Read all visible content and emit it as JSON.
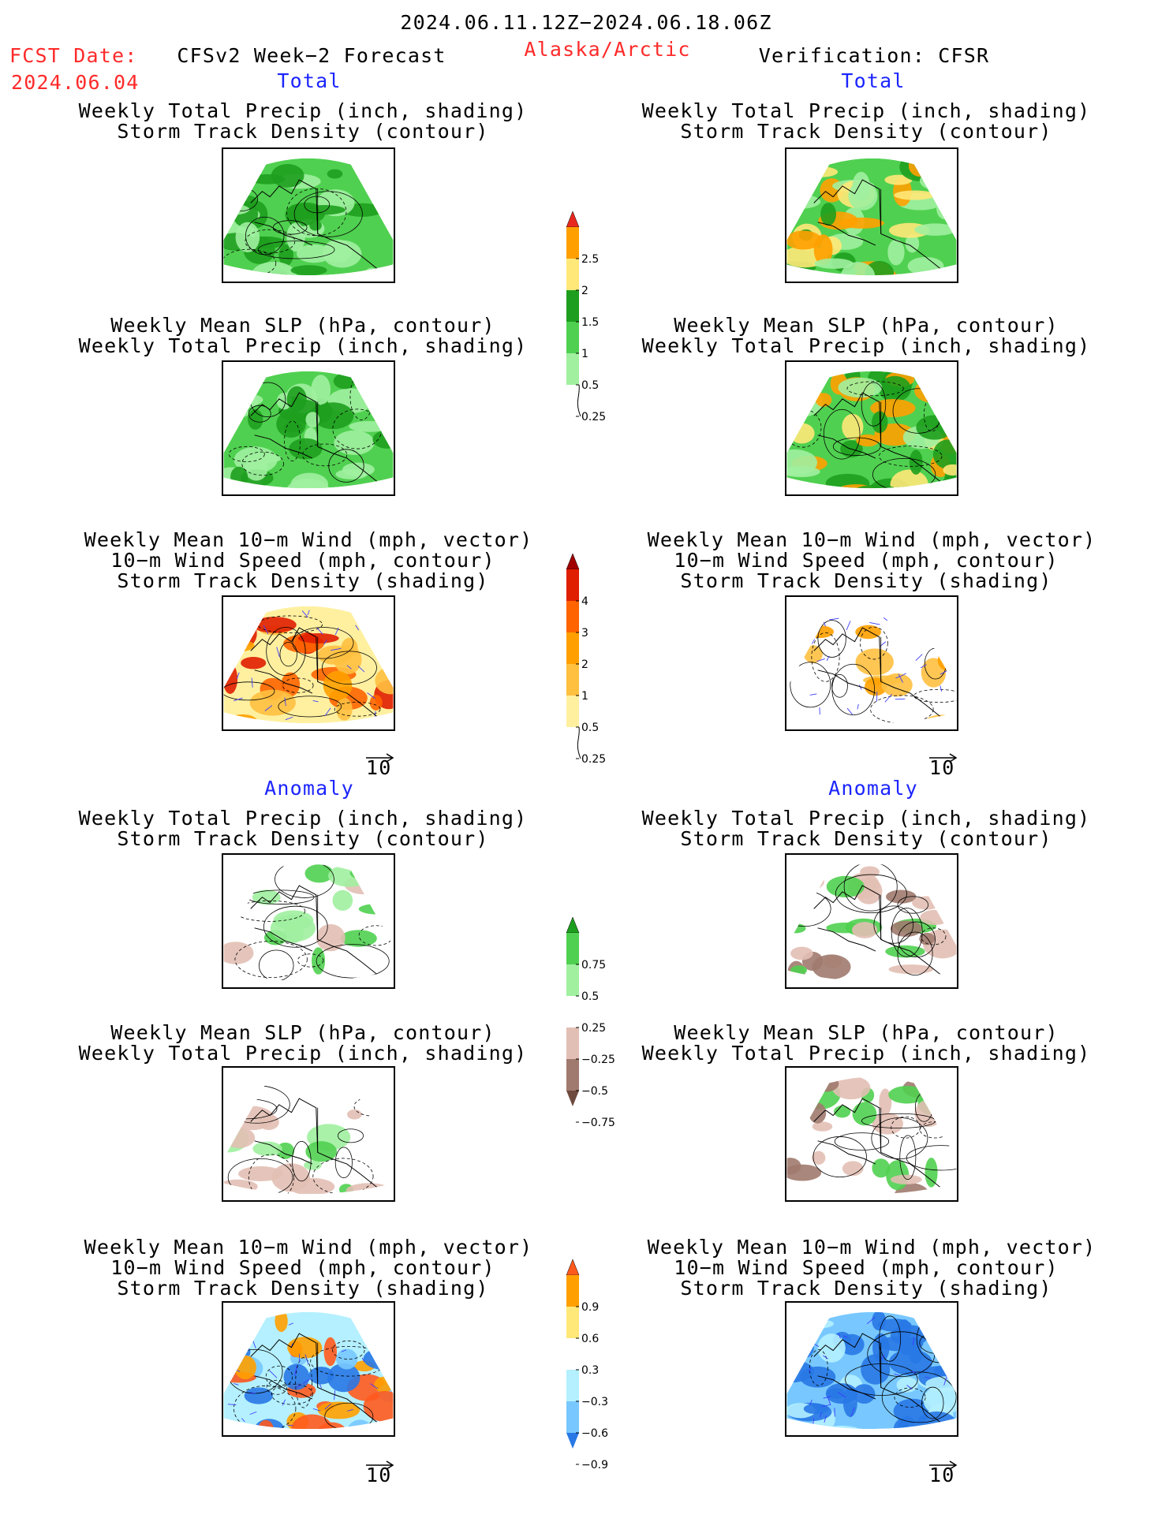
{
  "header": {
    "date_range": "2024.06.11.12Z−2024.06.18.06Z",
    "fcst_label": "FCST Date:",
    "fcst_date": "2024.06.04",
    "model_title": "CFSv2 Week−2 Forecast",
    "region": "Alaska/Arctic",
    "verification": "Verification: CFSR"
  },
  "sections": {
    "total": "Total",
    "anomaly": "Anomaly"
  },
  "panel_titles": {
    "precip_track": [
      "Weekly Total Precip (inch, shading)",
      "Storm Track Density (contour)"
    ],
    "slp_precip": [
      "Weekly Mean SLP (hPa, contour)",
      "Weekly Total Precip (inch, shading)"
    ],
    "wind_track": [
      "Weekly Mean 10−m Wind (mph, vector)",
      "10−m Wind Speed (mph, contour)",
      "Storm Track Density (shading)"
    ]
  },
  "vector_reference": "10",
  "colorbars": {
    "precip_total": {
      "labels": [
        "2.5",
        "2",
        "1.5",
        "1",
        "0.5",
        "0.25"
      ],
      "colors": [
        "#e8281e",
        "#ffa000",
        "#ffe878",
        "#1e9e1e",
        "#50d050",
        "#a0f0a0"
      ]
    },
    "track_total": {
      "labels": [
        "4",
        "3",
        "2",
        "1",
        "0.5",
        "0.25"
      ],
      "colors": [
        "#a00000",
        "#e01e00",
        "#ff6400",
        "#ffa000",
        "#ffc040",
        "#fff0a0"
      ]
    },
    "precip_anom": {
      "labels": [
        "0.75",
        "0.5",
        "0.25",
        "−0.25",
        "−0.5",
        "−0.75"
      ],
      "colors": [
        "#1e9e1e",
        "#50d050",
        "#a0f0a0",
        "#ffffff",
        "#e2bfb4",
        "#a07a6e",
        "#6e4a3e"
      ]
    },
    "track_anom": {
      "labels": [
        "0.9",
        "0.6",
        "0.3",
        "−0.3",
        "−0.6",
        "−0.9"
      ],
      "colors": [
        "#ff5a1e",
        "#ffa000",
        "#ffe878",
        "#ffffff",
        "#b4f0ff",
        "#78c8ff",
        "#2878e6"
      ]
    }
  }
}
